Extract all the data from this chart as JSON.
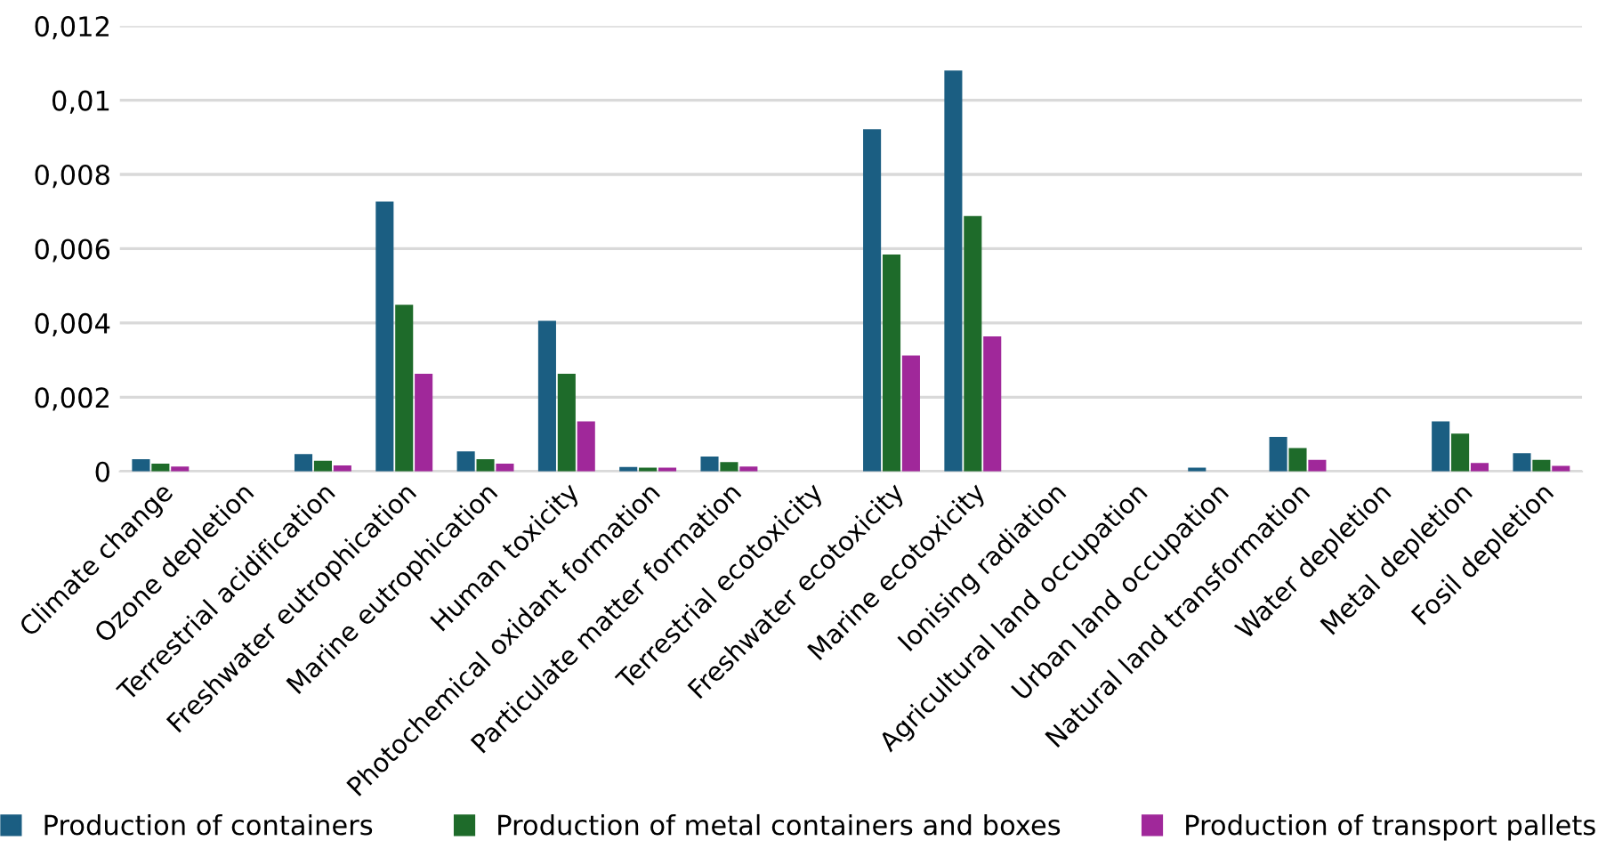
{
  "chart_data": {
    "type": "bar",
    "categories": [
      "Climate change",
      "Ozone depletion",
      "Terrestrial acidification",
      "Freshwater eutrophication",
      "Marine eutrophication",
      "Human toxicity",
      "Photochemical oxidant formation",
      "Particulate matter formation",
      "Terrestrial ecotoxicity",
      "Freshwater ecotoxicity",
      "Marine ecotoxicity",
      "Ionising radiation",
      "Agricultural land occupation",
      "Urban land occupation",
      "Natural land transformation",
      "Water depletion",
      "Metal depletion",
      "Fosil depletion"
    ],
    "series": [
      {
        "name": "Production of containers",
        "color": "#1b5e82",
        "values": [
          0.00033,
          0,
          0.00047,
          0.00727,
          0.00054,
          0.00406,
          0.00012,
          0.0004,
          0,
          0.00922,
          0.0108,
          0,
          0,
          0.0001,
          0.00093,
          0,
          0.00135,
          0.00049
        ]
      },
      {
        "name": "Production of metal containers and boxes",
        "color": "#1e6b2a",
        "values": [
          0.00021,
          0,
          0.00029,
          0.00449,
          0.00033,
          0.00263,
          0.0001,
          0.00025,
          0,
          0.00584,
          0.00688,
          0,
          0,
          0,
          0.00063,
          0,
          0.00102,
          0.00031
        ]
      },
      {
        "name": "Production of transport pallets",
        "color": "#a0289a",
        "values": [
          0.00013,
          0,
          0.00016,
          0.00263,
          0.00021,
          0.00135,
          0.0001,
          0.00013,
          0,
          0.00312,
          0.00364,
          0,
          0,
          0,
          0.00031,
          0,
          0.00023,
          0.00015
        ]
      }
    ],
    "ylim": [
      0,
      0.012
    ],
    "yticks": [
      0,
      {
        "value": 0.002,
        "label": "0,002"
      },
      {
        "value": 0.004,
        "label": "0,004"
      },
      {
        "value": 0.006,
        "label": "0,006"
      },
      {
        "value": 0.008,
        "label": "0,008"
      },
      {
        "value": 0.01,
        "label": "0,01"
      },
      {
        "value": 0.012,
        "label": "0,012"
      }
    ],
    "grid": "y",
    "legend": "bottom"
  }
}
